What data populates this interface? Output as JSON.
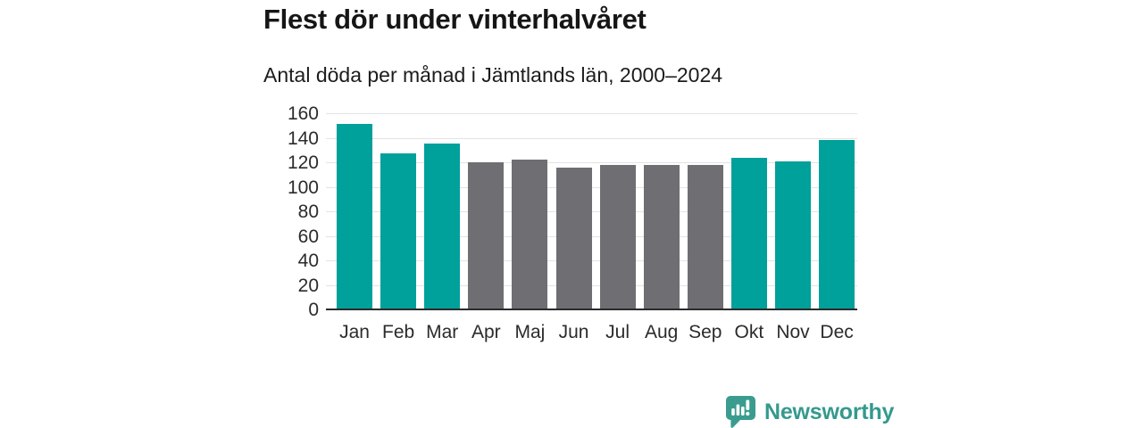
{
  "chart_data": {
    "type": "bar",
    "title": "Flest dör under vinterhalvåret",
    "subtitle": "Antal döda per månad i Jämtlands län, 2000–2024",
    "categories": [
      "Jan",
      "Feb",
      "Mar",
      "Apr",
      "Maj",
      "Jun",
      "Jul",
      "Aug",
      "Sep",
      "Okt",
      "Nov",
      "Dec"
    ],
    "values": [
      151,
      127,
      135,
      120,
      122,
      116,
      118,
      118,
      118,
      124,
      121,
      138
    ],
    "highlighted": [
      true,
      true,
      true,
      false,
      false,
      false,
      false,
      false,
      false,
      true,
      true,
      true
    ],
    "ylim": [
      0,
      160
    ],
    "yticks": [
      0,
      20,
      40,
      60,
      80,
      100,
      120,
      140,
      160
    ],
    "grid": "horizontal",
    "legend": "none",
    "xlabel": "",
    "ylabel": "",
    "colors": {
      "highlight": "#00a09b",
      "base": "#6e6e73",
      "gridline": "#e3e3e3",
      "axis_line": "#2b2b2b",
      "tick_label": "#2b2b2b",
      "title": "#161616"
    }
  },
  "footer": {
    "brand": "Newsworthy",
    "brand_color": "#35998e",
    "logo_color": "#3a9c8f"
  }
}
